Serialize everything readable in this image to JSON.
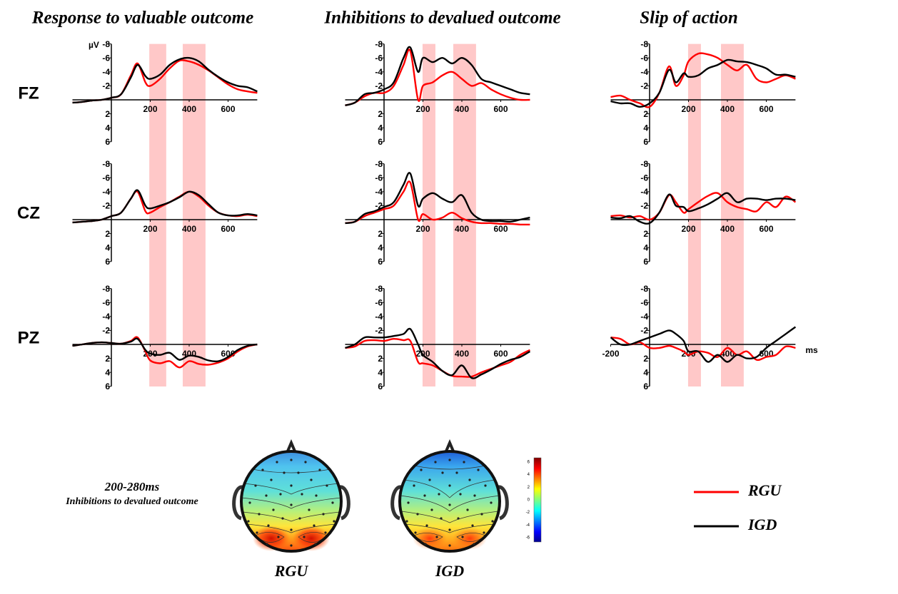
{
  "chart_data": [
    {
      "type": "line",
      "title": "Response to valuable outcome",
      "row_label": "FZ",
      "ylabel": "µV",
      "x": [
        -200,
        -150,
        -100,
        -50,
        0,
        50,
        100,
        135,
        175,
        200,
        250,
        300,
        350,
        400,
        450,
        500,
        550,
        600,
        650,
        700,
        750
      ],
      "series": [
        {
          "name": "RGU",
          "color": "#ff0000",
          "values": [
            0.4,
            0.3,
            0.1,
            0,
            -0.3,
            -0.8,
            -3.5,
            -5.2,
            -2.5,
            -2,
            -3,
            -4.5,
            -5.6,
            -5.5,
            -5,
            -4.2,
            -3.2,
            -2.2,
            -1.5,
            -1.2,
            -1
          ]
        },
        {
          "name": "IGD",
          "color": "#000000",
          "values": [
            0.4,
            0.3,
            0.1,
            0,
            -0.3,
            -0.8,
            -3.2,
            -5,
            -3.4,
            -3,
            -3.6,
            -5,
            -5.8,
            -6,
            -5.5,
            -4.3,
            -3.3,
            -2.5,
            -2,
            -1.8,
            -1.2
          ]
        }
      ],
      "xlim": [
        -200,
        750
      ],
      "ylim": [
        6,
        -8
      ],
      "xticks": [
        200,
        400,
        600
      ],
      "yticks": [
        -8,
        -6,
        -4,
        -2,
        2,
        4,
        6
      ],
      "shaded": [
        [
          195,
          282
        ],
        [
          367,
          484
        ]
      ],
      "shade_color": "#ffc8c8"
    },
    {
      "type": "line",
      "title": "Inhibitions to devalued outcome",
      "x": [
        -200,
        -150,
        -100,
        -50,
        0,
        50,
        100,
        135,
        175,
        200,
        250,
        300,
        350,
        400,
        450,
        500,
        550,
        600,
        650,
        700,
        750
      ],
      "series": [
        {
          "name": "RGU",
          "color": "#ff0000",
          "values": [
            0.8,
            0.4,
            -0.5,
            -1,
            -1,
            -2,
            -5,
            -7,
            0,
            -2,
            -2.5,
            -3.5,
            -4,
            -3,
            -2,
            -2.4,
            -1.5,
            -0.8,
            -0.3,
            0,
            0
          ]
        },
        {
          "name": "IGD",
          "color": "#000000",
          "values": [
            0.8,
            0.4,
            -0.8,
            -1,
            -1.5,
            -2.5,
            -6,
            -7.5,
            -4,
            -6,
            -5.4,
            -6,
            -5.2,
            -6,
            -5,
            -3,
            -2.5,
            -2,
            -1.5,
            -1,
            -0.8
          ]
        }
      ],
      "xlim": [
        -200,
        750
      ],
      "ylim": [
        6,
        -8
      ],
      "xticks": [
        200,
        400,
        600
      ],
      "yticks": [
        -8,
        -6,
        -4,
        -2,
        2,
        4,
        6
      ],
      "shaded": [
        [
          198,
          264
        ],
        [
          356,
          473
        ]
      ],
      "shade_color": "#ffc8c8"
    },
    {
      "type": "line",
      "title": "Slip of action",
      "x": [
        -200,
        -150,
        -100,
        -50,
        0,
        50,
        100,
        135,
        175,
        200,
        250,
        300,
        350,
        400,
        450,
        500,
        550,
        600,
        650,
        700,
        750
      ],
      "series": [
        {
          "name": "RGU",
          "color": "#ff0000",
          "values": [
            -0.4,
            -0.6,
            0,
            0.5,
            1,
            -1,
            -4.8,
            -2,
            -3.5,
            -5.5,
            -6.6,
            -6.5,
            -6,
            -5,
            -4.2,
            -5,
            -3,
            -2.5,
            -3,
            -3.5,
            -3
          ]
        },
        {
          "name": "IGD",
          "color": "#000000",
          "values": [
            0.2,
            0.5,
            0.5,
            1,
            0.5,
            -1,
            -4.3,
            -2.5,
            -3.8,
            -3.3,
            -3.5,
            -4.5,
            -5,
            -5.7,
            -5.5,
            -5.4,
            -5,
            -4.5,
            -3.6,
            -3.6,
            -3.3
          ]
        }
      ],
      "xlim": [
        -200,
        750
      ],
      "ylim": [
        6,
        -8
      ],
      "xticks": [
        200,
        400,
        600
      ],
      "yticks": [
        -8,
        -6,
        -4,
        -2,
        2,
        4,
        6
      ],
      "shaded": [
        [
          198,
          264
        ],
        [
          367,
          484
        ]
      ],
      "shade_color": "#ffc8c8"
    },
    {
      "type": "line",
      "row_label": "CZ",
      "x": [
        -200,
        -150,
        -100,
        -50,
        0,
        50,
        100,
        135,
        175,
        200,
        250,
        300,
        350,
        400,
        450,
        500,
        550,
        600,
        650,
        700,
        750
      ],
      "series": [
        {
          "name": "RGU",
          "color": "#ff0000",
          "values": [
            0.4,
            0.3,
            0.2,
            0,
            -0.5,
            -1,
            -3,
            -4,
            -1.2,
            -1,
            -1.8,
            -2.5,
            -3.3,
            -4,
            -3.3,
            -2,
            -1,
            -0.6,
            -0.5,
            -0.7,
            -0.5
          ]
        },
        {
          "name": "IGD",
          "color": "#000000",
          "values": [
            0.4,
            0.3,
            0.2,
            0,
            -0.5,
            -1,
            -3,
            -4.2,
            -2,
            -1.6,
            -2,
            -2.5,
            -3.2,
            -4,
            -3.5,
            -2.2,
            -1,
            -0.6,
            -0.6,
            -0.8,
            -0.6
          ]
        }
      ],
      "xlim": [
        -200,
        750
      ],
      "ylim": [
        6,
        -8
      ],
      "xticks": [
        200,
        400,
        600
      ],
      "yticks": [
        -8,
        -6,
        -4,
        -2,
        2,
        4,
        6
      ]
    },
    {
      "type": "line",
      "x": [
        -200,
        -150,
        -100,
        -50,
        0,
        50,
        100,
        135,
        175,
        200,
        250,
        300,
        350,
        400,
        450,
        500,
        550,
        600,
        650,
        700,
        750
      ],
      "series": [
        {
          "name": "RGU",
          "color": "#ff0000",
          "values": [
            0.5,
            0.3,
            -0.5,
            -1,
            -1.5,
            -2,
            -4,
            -5.3,
            0,
            -0.8,
            0,
            -0.3,
            -1,
            -0.2,
            0.3,
            0.5,
            0.5,
            0.6,
            0.6,
            0.7,
            0.7
          ]
        },
        {
          "name": "IGD",
          "color": "#000000",
          "values": [
            0.5,
            0.3,
            -0.8,
            -1.2,
            -1.8,
            -2.5,
            -5,
            -6.6,
            -2,
            -3,
            -3.8,
            -3,
            -2.5,
            -3.5,
            -1,
            0,
            0.2,
            0.2,
            0.3,
            0,
            -0.3
          ]
        }
      ],
      "xlim": [
        -200,
        750
      ],
      "ylim": [
        6,
        -8
      ],
      "xticks": [
        200,
        400,
        600
      ],
      "yticks": [
        -8,
        -6,
        -4,
        -2,
        2,
        4,
        6
      ]
    },
    {
      "type": "line",
      "x": [
        -200,
        -150,
        -100,
        -50,
        0,
        50,
        100,
        135,
        175,
        200,
        250,
        300,
        350,
        400,
        450,
        500,
        550,
        600,
        650,
        700,
        750
      ],
      "series": [
        {
          "name": "RGU",
          "color": "#ff0000",
          "values": [
            -0.5,
            -0.6,
            -0.3,
            -0.5,
            0,
            -1,
            -3.5,
            -2.5,
            -1,
            -1.5,
            -2.5,
            -3.4,
            -3.8,
            -2.5,
            -1.8,
            -1.5,
            -1.2,
            -2.5,
            -1.8,
            -3.3,
            -2.5
          ]
        },
        {
          "name": "IGD",
          "color": "#000000",
          "values": [
            -0.3,
            -0.2,
            -0.5,
            0.3,
            0.5,
            -1,
            -3.6,
            -2,
            -1.8,
            -1.2,
            -1.6,
            -2.2,
            -3,
            -3.8,
            -2.5,
            -3,
            -3,
            -2.8,
            -3,
            -3,
            -2.8
          ]
        }
      ],
      "xlim": [
        -200,
        750
      ],
      "ylim": [
        6,
        -8
      ],
      "xticks": [
        200,
        400,
        600
      ],
      "yticks": [
        -8,
        -6,
        -4,
        -2,
        2,
        4,
        6
      ]
    },
    {
      "type": "line",
      "row_label": "PZ",
      "x": [
        -200,
        -150,
        -100,
        -50,
        0,
        50,
        100,
        135,
        175,
        200,
        250,
        300,
        350,
        400,
        450,
        500,
        550,
        600,
        650,
        700,
        750
      ],
      "series": [
        {
          "name": "RGU",
          "color": "#ff0000",
          "values": [
            0.2,
            0,
            -0.2,
            -0.3,
            -0.2,
            -0.1,
            -0.5,
            -1,
            1,
            2.3,
            2.7,
            2.4,
            3.3,
            2.4,
            2.8,
            2.9,
            2.6,
            2,
            1,
            0.3,
            0
          ]
        },
        {
          "name": "IGD",
          "color": "#000000",
          "values": [
            0.2,
            0,
            -0.2,
            -0.3,
            -0.2,
            -0.1,
            -0.4,
            -0.8,
            0.8,
            1.3,
            1.5,
            1.2,
            2.2,
            1.6,
            1.8,
            2.3,
            2.4,
            1.8,
            0.8,
            0.2,
            0
          ]
        }
      ],
      "xlim": [
        -200,
        750
      ],
      "ylim": [
        6,
        -8
      ],
      "xticks": [
        200,
        400,
        600
      ],
      "yticks": [
        -8,
        -6,
        -4,
        -2,
        2,
        4,
        6
      ]
    },
    {
      "type": "line",
      "x": [
        -200,
        -150,
        -100,
        -50,
        0,
        50,
        100,
        135,
        175,
        200,
        250,
        300,
        350,
        400,
        450,
        500,
        550,
        600,
        650,
        700,
        750
      ],
      "series": [
        {
          "name": "RGU",
          "color": "#ff0000",
          "values": [
            0.5,
            0.3,
            -0.5,
            -0.6,
            -0.5,
            -0.8,
            -0.6,
            -0.5,
            2.5,
            2.7,
            3,
            3.8,
            4.5,
            4.6,
            4.6,
            4,
            3.5,
            3,
            2.5,
            1.5,
            0.8
          ]
        },
        {
          "name": "IGD",
          "color": "#000000",
          "values": [
            0.5,
            0,
            -1,
            -1,
            -1,
            -1.2,
            -1.5,
            -2.2,
            0,
            1.5,
            2.5,
            3.8,
            4.4,
            3,
            4.8,
            4.3,
            3.6,
            2.8,
            2.2,
            1.8,
            1
          ]
        }
      ],
      "xlim": [
        -200,
        750
      ],
      "ylim": [
        6,
        -8
      ],
      "xticks": [
        200,
        400,
        600
      ],
      "yticks": [
        -8,
        -6,
        -4,
        -2,
        2,
        4,
        6
      ]
    },
    {
      "type": "line",
      "xlabel": "ms",
      "x": [
        -200,
        -150,
        -100,
        -50,
        0,
        50,
        100,
        135,
        175,
        200,
        250,
        300,
        350,
        400,
        450,
        500,
        550,
        600,
        650,
        700,
        750
      ],
      "series": [
        {
          "name": "RGU",
          "color": "#ff0000",
          "values": [
            -1,
            -0.8,
            0,
            -0.3,
            0.5,
            0.5,
            0.2,
            0.5,
            1,
            1.5,
            1,
            1.2,
            1.8,
            0.5,
            1.5,
            1,
            2.2,
            1.8,
            1.5,
            0.3,
            0.5
          ]
        },
        {
          "name": "IGD",
          "color": "#000000",
          "values": [
            -1,
            0,
            0,
            -0.5,
            -1,
            -1.5,
            -2,
            -1.5,
            -0.5,
            1,
            1,
            2.5,
            1.5,
            2.5,
            1.5,
            2,
            1.8,
            0.5,
            -0.5,
            -1.5,
            -2.5
          ]
        }
      ],
      "xlim": [
        -200,
        750
      ],
      "ylim": [
        6,
        -8
      ],
      "xticks": [
        -200,
        200,
        400,
        600
      ],
      "yticks": [
        -8,
        -6,
        -4,
        -2,
        2,
        4,
        6
      ]
    },
    {
      "type": "topomap",
      "title": "200-280ms",
      "subtitle": "Inhibitions to devalued outcome",
      "maps": [
        "RGU",
        "IGD"
      ],
      "clim": [
        -6,
        6
      ],
      "cticks": [
        6,
        4,
        2,
        0,
        -2,
        -4,
        -6
      ]
    }
  ]
}
